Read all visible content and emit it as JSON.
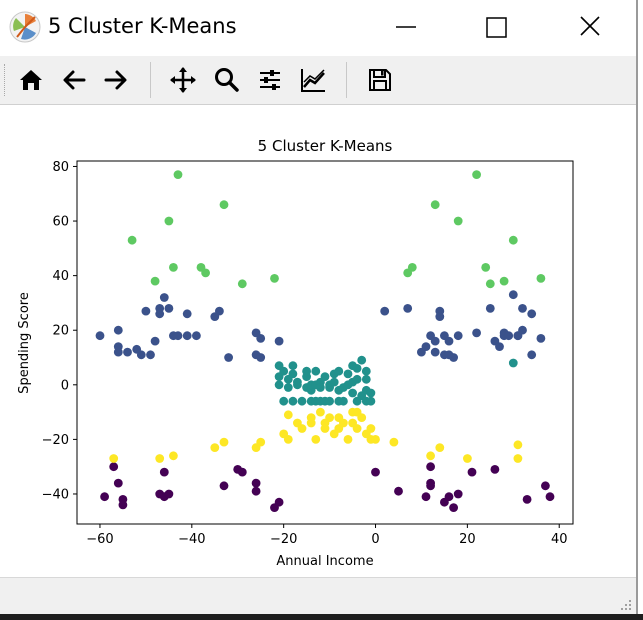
{
  "window": {
    "title": "5 Cluster K-Means",
    "minimize_icon": "minimize-icon",
    "maximize_icon": "maximize-icon",
    "close_icon": "close-icon"
  },
  "toolbar": {
    "buttons": [
      {
        "name": "home-button",
        "icon": "home-icon"
      },
      {
        "name": "back-button",
        "icon": "arrow-left-icon"
      },
      {
        "name": "forward-button",
        "icon": "arrow-right-icon"
      },
      {
        "name": "pan-button",
        "icon": "move-icon"
      },
      {
        "name": "zoom-button",
        "icon": "magnifier-icon"
      },
      {
        "name": "configure-subplots-button",
        "icon": "sliders-icon"
      },
      {
        "name": "edit-axis-button",
        "icon": "chart-line-icon"
      },
      {
        "name": "save-button",
        "icon": "floppy-disk-icon"
      }
    ]
  },
  "chart_data": {
    "type": "scatter",
    "title": "5 Cluster K-Means",
    "xlabel": "Annual Income",
    "ylabel": "Spending Score",
    "xlim": [
      -65,
      43
    ],
    "ylim": [
      -51,
      82
    ],
    "xticks": [
      -60,
      -40,
      -20,
      0,
      20,
      40
    ],
    "yticks": [
      -40,
      -20,
      0,
      20,
      40,
      60,
      80
    ],
    "grid": false,
    "colors": {
      "cluster_0": "#440154",
      "cluster_1": "#3b528b",
      "cluster_2": "#21918c",
      "cluster_3": "#5ec962",
      "cluster_4": "#fde725"
    },
    "series": [
      {
        "key": "cluster_0",
        "points": [
          [
            -59,
            -41
          ],
          [
            -57,
            -30
          ],
          [
            -56,
            -36
          ],
          [
            -55,
            -42
          ],
          [
            -55,
            -44
          ],
          [
            -47,
            -40
          ],
          [
            -46,
            -32
          ],
          [
            -46,
            -41
          ],
          [
            -45,
            -40
          ],
          [
            -33,
            -37
          ],
          [
            -30,
            -31
          ],
          [
            -29,
            -32
          ],
          [
            -26,
            -36
          ],
          [
            -26,
            -39
          ],
          [
            -22,
            -45
          ],
          [
            -21,
            -43
          ],
          [
            0,
            -32
          ],
          [
            5,
            -39
          ],
          [
            11,
            -41
          ],
          [
            12,
            -30
          ],
          [
            12,
            -36
          ],
          [
            12,
            -37
          ],
          [
            15,
            -43
          ],
          [
            16,
            -41
          ],
          [
            17,
            -45
          ],
          [
            18,
            -40
          ],
          [
            21,
            -32
          ],
          [
            26,
            -31
          ],
          [
            33,
            -42
          ],
          [
            37,
            -37
          ],
          [
            38,
            -41
          ]
        ]
      },
      {
        "key": "cluster_1",
        "points": [
          [
            -60,
            18
          ],
          [
            -56,
            20
          ],
          [
            -56,
            14
          ],
          [
            -56,
            12
          ],
          [
            -54,
            12
          ],
          [
            -52,
            13
          ],
          [
            -51,
            11
          ],
          [
            -50,
            27
          ],
          [
            -49,
            11
          ],
          [
            -48,
            16
          ],
          [
            -47,
            26
          ],
          [
            -47,
            28
          ],
          [
            -46,
            32
          ],
          [
            -45,
            28
          ],
          [
            -44,
            18
          ],
          [
            -43,
            18
          ],
          [
            -41,
            26
          ],
          [
            -41,
            18
          ],
          [
            -39,
            18
          ],
          [
            -35,
            25
          ],
          [
            -34,
            27
          ],
          [
            -32,
            10
          ],
          [
            -26,
            19
          ],
          [
            -26,
            11
          ],
          [
            -25,
            10
          ],
          [
            -25,
            17
          ],
          [
            -21,
            16
          ],
          [
            2,
            27
          ],
          [
            7,
            28
          ],
          [
            10,
            12
          ],
          [
            11,
            14
          ],
          [
            12,
            18
          ],
          [
            13,
            12
          ],
          [
            13,
            16
          ],
          [
            14,
            27
          ],
          [
            14,
            25
          ],
          [
            15,
            11
          ],
          [
            15,
            18
          ],
          [
            16,
            16
          ],
          [
            16,
            11
          ],
          [
            17,
            10
          ],
          [
            18,
            18
          ],
          [
            22,
            19
          ],
          [
            25,
            28
          ],
          [
            26,
            16
          ],
          [
            27,
            14
          ],
          [
            28,
            19
          ],
          [
            28,
            18
          ],
          [
            29,
            18
          ],
          [
            30,
            33
          ],
          [
            31,
            18
          ],
          [
            31,
            18
          ],
          [
            32,
            20
          ],
          [
            32,
            28
          ],
          [
            34,
            11
          ],
          [
            34,
            26
          ],
          [
            36,
            17
          ]
        ]
      },
      {
        "key": "cluster_2",
        "points": [
          [
            -21,
            7
          ],
          [
            -21,
            3
          ],
          [
            -21,
            0
          ],
          [
            -20,
            5
          ],
          [
            -20,
            -6
          ],
          [
            -19,
            -1
          ],
          [
            -19,
            2
          ],
          [
            -18,
            4
          ],
          [
            -18,
            7
          ],
          [
            -18,
            -6
          ],
          [
            -17,
            0
          ],
          [
            -17,
            1
          ],
          [
            -16,
            -6
          ],
          [
            -15,
            -1
          ],
          [
            -15,
            3
          ],
          [
            -15,
            5
          ],
          [
            -14,
            -6
          ],
          [
            -14,
            -2
          ],
          [
            -14,
            0
          ],
          [
            -13,
            -6
          ],
          [
            -13,
            0
          ],
          [
            -13,
            5
          ],
          [
            -12,
            1
          ],
          [
            -12,
            -1
          ],
          [
            -12,
            -6
          ],
          [
            -11,
            3
          ],
          [
            -11,
            -6
          ],
          [
            -10,
            0
          ],
          [
            -10,
            -1
          ],
          [
            -10,
            -6
          ],
          [
            -9,
            4
          ],
          [
            -9,
            1
          ],
          [
            -8,
            -6
          ],
          [
            -8,
            -2
          ],
          [
            -8,
            5
          ],
          [
            -7,
            -1
          ],
          [
            -7,
            -6
          ],
          [
            -6,
            0
          ],
          [
            -6,
            4
          ],
          [
            -5,
            1
          ],
          [
            -5,
            -3
          ],
          [
            -5,
            7
          ],
          [
            -4,
            -6
          ],
          [
            -4,
            2
          ],
          [
            -4,
            6
          ],
          [
            -3,
            9
          ],
          [
            -3,
            -4
          ],
          [
            -2,
            -6
          ],
          [
            -2,
            -2
          ],
          [
            -2,
            5
          ],
          [
            -2,
            2
          ],
          [
            -1,
            -3
          ],
          [
            -1,
            -6
          ],
          [
            30,
            8
          ]
        ]
      },
      {
        "key": "cluster_3",
        "points": [
          [
            -53,
            53
          ],
          [
            -48,
            38
          ],
          [
            -45,
            60
          ],
          [
            -44,
            43
          ],
          [
            -43,
            77
          ],
          [
            -38,
            43
          ],
          [
            -37,
            41
          ],
          [
            -33,
            66
          ],
          [
            -29,
            37
          ],
          [
            -22,
            39
          ],
          [
            7,
            41
          ],
          [
            8,
            43
          ],
          [
            13,
            66
          ],
          [
            18,
            60
          ],
          [
            22,
            77
          ],
          [
            24,
            43
          ],
          [
            25,
            37
          ],
          [
            28,
            38
          ],
          [
            30,
            53
          ],
          [
            36,
            39
          ]
        ]
      },
      {
        "key": "cluster_4",
        "points": [
          [
            -57,
            -27
          ],
          [
            -47,
            -27
          ],
          [
            -44,
            -26
          ],
          [
            -35,
            -23
          ],
          [
            -33,
            -21
          ],
          [
            -26,
            -23
          ],
          [
            -25,
            -21
          ],
          [
            -20,
            -18
          ],
          [
            -19,
            -11
          ],
          [
            -19,
            -20
          ],
          [
            -17,
            -14
          ],
          [
            -16,
            -16
          ],
          [
            -14,
            -12
          ],
          [
            -14,
            -14
          ],
          [
            -13,
            -20
          ],
          [
            -12,
            -10
          ],
          [
            -11,
            -14
          ],
          [
            -11,
            -16
          ],
          [
            -10,
            -12
          ],
          [
            -9,
            -18
          ],
          [
            -8,
            -16
          ],
          [
            -8,
            -12
          ],
          [
            -7,
            -14
          ],
          [
            -6,
            -20
          ],
          [
            -5,
            -10
          ],
          [
            -5,
            -14
          ],
          [
            -4,
            -16
          ],
          [
            -4,
            -10
          ],
          [
            -3,
            -12
          ],
          [
            -2,
            -18
          ],
          [
            -1,
            -16
          ],
          [
            -1,
            -20
          ],
          [
            0,
            -20
          ],
          [
            4,
            -21
          ],
          [
            12,
            -26
          ],
          [
            14,
            -23
          ],
          [
            20,
            -27
          ],
          [
            31,
            -22
          ],
          [
            31,
            -27
          ]
        ]
      }
    ]
  }
}
